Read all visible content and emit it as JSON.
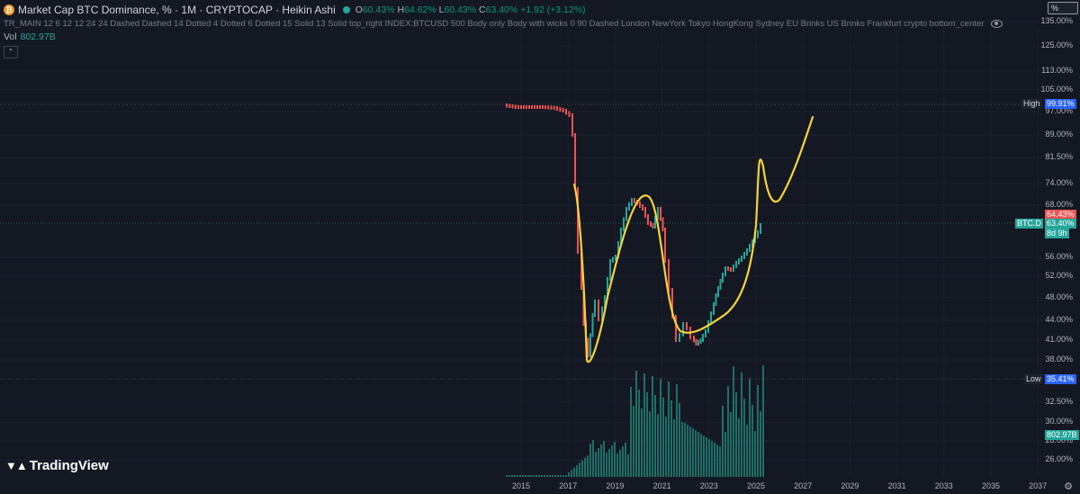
{
  "legend": {
    "coin_icon": "bitcoin-icon",
    "title": "Market Cap BTC Dominance, % · 1M · CRYPTOCAP · Heikin Ashi",
    "open_label": "O",
    "open": "60.43%",
    "high_label": "H",
    "high": "64.62%",
    "low_label": "L",
    "low": "60.43%",
    "close_label": "C",
    "close": "63.40%",
    "change": "+1.92 (+3.12%)"
  },
  "indicator": {
    "text": "TR_MAIN 12 6 12 12 24 24 Dashed Dashed 14 Dotted 4 Dotted 6 Dotted 15 Solid 13 Solid top_right INDEX:BTCUSD 500 Body only Body with wicks 0 90 Dashed London NewYork Tokyo HongKong Sydney EU Brinks US Brinks Frankfurt crypto bottom_center"
  },
  "volume": {
    "label": "Vol",
    "value": "802.97B"
  },
  "collapse_icon": "chevron-up-icon",
  "collapse_glyph": "⌃",
  "scale_button": "%",
  "price_axis": [
    "135.00%",
    "125.00%",
    "113.00%",
    "105.00%",
    "97.00%",
    "89.00%",
    "81.50%",
    "74.00%",
    "68.00%",
    "56.00%",
    "52.00%",
    "48.00%",
    "44.00%",
    "41.00%",
    "38.00%",
    "32.50%",
    "30.00%",
    "28.00%",
    "26.00%"
  ],
  "time_axis": [
    "2015",
    "2017",
    "2019",
    "2021",
    "2023",
    "2025",
    "2027",
    "2029",
    "2031",
    "2033",
    "2035",
    "2037"
  ],
  "markers": {
    "high_label": "High",
    "high_value": "99.91%",
    "low_label": "Low",
    "low_value": "35.41%",
    "symbol": "BTC.D",
    "last_price": "63.40%",
    "countdown": "8d 9h",
    "bar_high": "64.43%",
    "volume_value": "802.97B"
  },
  "colors": {
    "bg": "#141823",
    "up": "#26a69a",
    "down": "#ef5350",
    "drawing": "#f5d33b"
  },
  "brand": "TradingView",
  "settings_icon": "gear-icon",
  "settings_glyph": "⚙"
}
